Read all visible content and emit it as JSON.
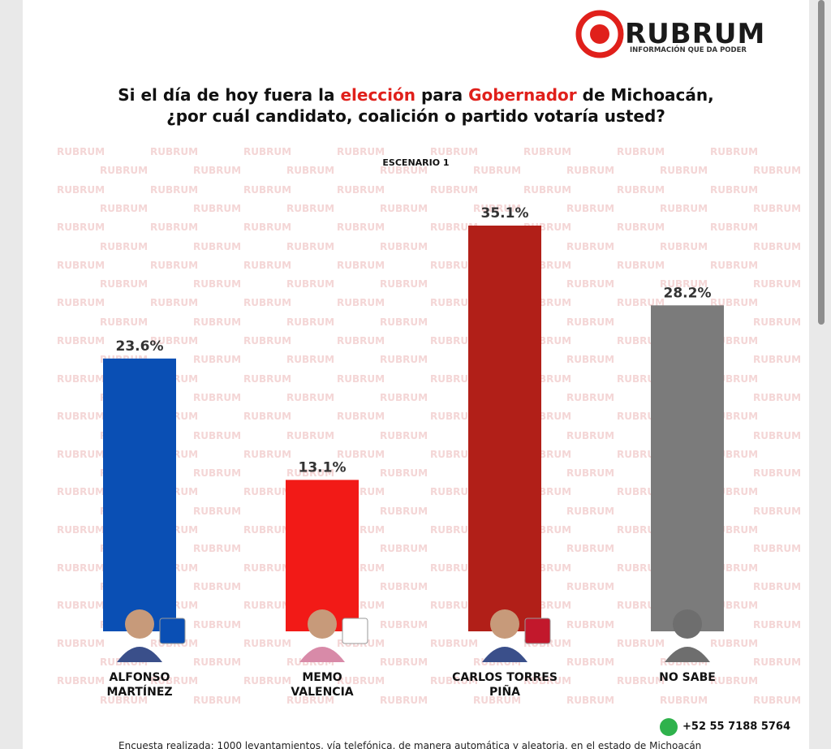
{
  "brand": {
    "name": "RUBRUM",
    "tagline": "INFORMACIÓN QUE DA PODER"
  },
  "watermark": "RUBRUM",
  "chart_data": {
    "type": "bar",
    "title": [
      {
        "text": "Si el día de hoy fuera la",
        "color": "#111111"
      },
      {
        "text": "elección",
        "color": "#e0201b"
      },
      {
        "text": "para",
        "color": "#111111"
      },
      {
        "text": "Gobernador",
        "color": "#e0201b"
      },
      {
        "text": "de Michoacán,",
        "color": "#111111"
      }
    ],
    "title_line2": "¿por cuál candidato, coalición o partido votaría usted?",
    "subtitle": "ESCENARIO 1",
    "categories": [
      "ALFONSO MARTÍNEZ",
      "MEMO VALENCIA",
      "CARLOS TORRES PIÑA",
      "NO SABE"
    ],
    "values": [
      23.6,
      13.1,
      35.1,
      28.2
    ],
    "value_labels": [
      "23.6%",
      "13.1%",
      "35.1%",
      "28.2%"
    ],
    "colors": [
      "#0a4fb4",
      "#f21a17",
      "#b11f18",
      "#7b7b7b"
    ]
  },
  "contact": "+52 55 7188 5764",
  "footnote": "Encuesta realizada: 1000 levantamientos, vía telefónica, de manera automática y aleatoria, en el estado de Michoacán"
}
